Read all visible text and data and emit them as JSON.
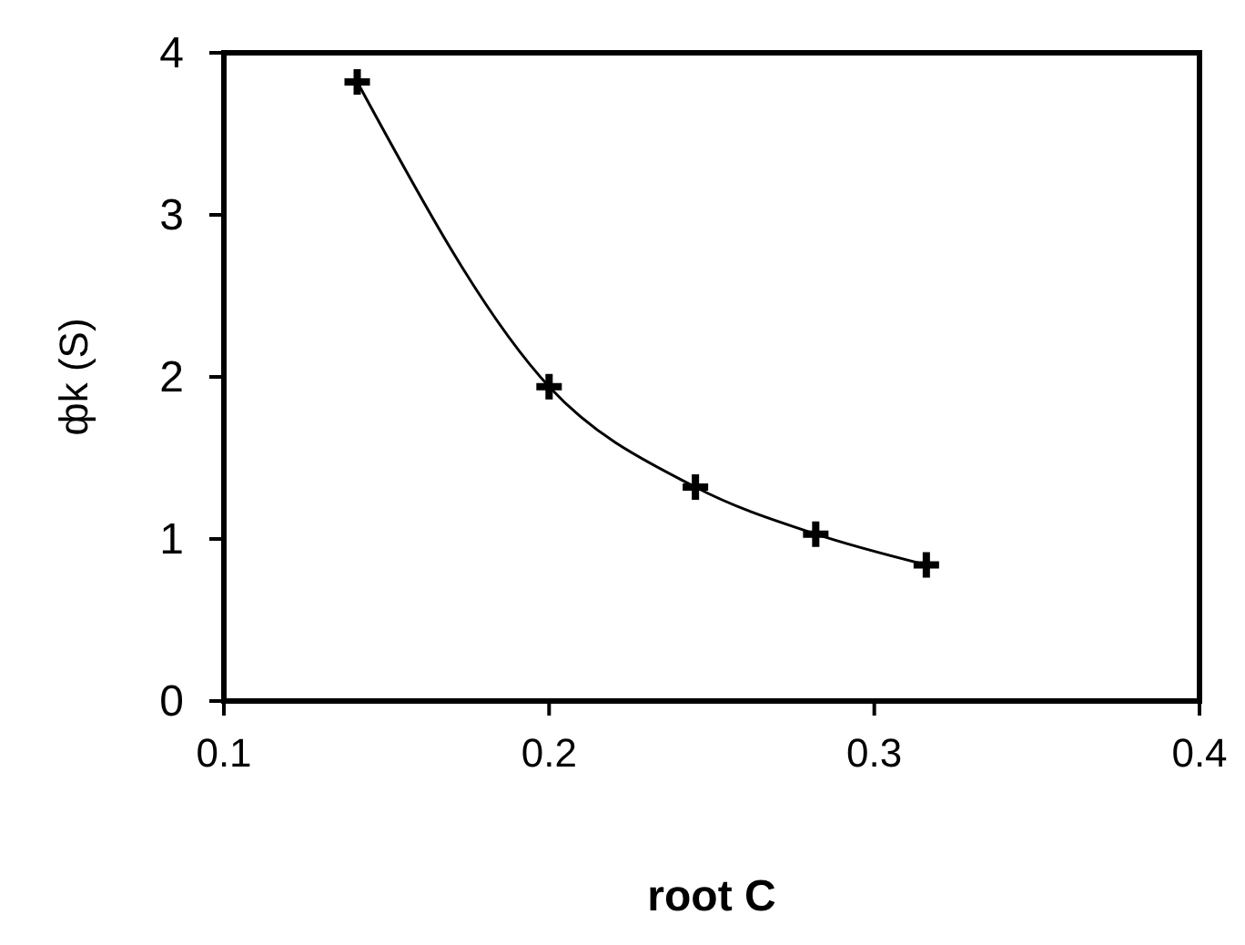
{
  "chart_data": {
    "type": "line",
    "xlabel": "root C",
    "ylabel": "фk (S)",
    "x": [
      0.141,
      0.2,
      0.245,
      0.282,
      0.316
    ],
    "series": [
      {
        "color": "#000000",
        "values": [
          3.82,
          1.94,
          1.32,
          1.03,
          0.84
        ]
      }
    ],
    "xlim": [
      0.1,
      0.4
    ],
    "xticks": [
      0.1,
      0.2,
      0.3,
      0.4
    ],
    "ylim": [
      0,
      4
    ],
    "yticks": [
      0,
      1,
      2,
      3,
      4
    ],
    "marker": "cross",
    "line_style": "solid"
  }
}
